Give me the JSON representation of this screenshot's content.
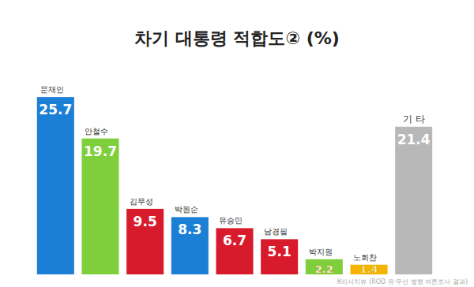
{
  "chart_data": {
    "type": "bar",
    "title": "차기 대통령 적합도② (%)",
    "categories": [
      "문재인",
      "안철수",
      "김무성",
      "박원순",
      "유승민",
      "남경필",
      "박지원",
      "노회찬",
      "기 타"
    ],
    "values": [
      25.7,
      19.7,
      9.5,
      8.3,
      6.7,
      5.1,
      2.2,
      1.4,
      21.4
    ],
    "colors": [
      "#1b7fd6",
      "#7fcf3c",
      "#d81b2c",
      "#1b7fd6",
      "#d81b2c",
      "#d81b2c",
      "#7fcf3c",
      "#f4b400",
      "#b8b8b8"
    ],
    "ylim": [
      0,
      30
    ],
    "data_labels": true,
    "tick_labels": false,
    "source": "※리서치뷰 (ROD 유·무선 병행 여론조사 결과)"
  }
}
